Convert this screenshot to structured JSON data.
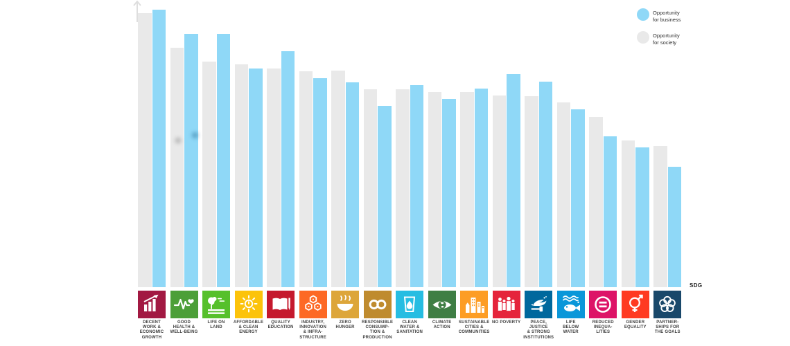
{
  "colors": {
    "business": "#8FD8F7",
    "society": "#E9E9E9",
    "axis_arrow": "#DEDEDE",
    "label_text": "#3E3E3E"
  },
  "legend": {
    "business": {
      "line1": "Opportunity",
      "line2": "for business"
    },
    "society": {
      "line1": "Opportunity",
      "line2": "for society"
    }
  },
  "axis": {
    "x_end_label": "SDG"
  },
  "chart_data": {
    "type": "bar",
    "title": "",
    "xlabel": "SDG",
    "ylabel": "",
    "ylim": [
      0,
      100
    ],
    "grid": false,
    "legend_position": "top-right",
    "categories": [
      "Decent Work & Economic Growth",
      "Good Health & Well-Being",
      "Life on Land",
      "Affordable & Clean Energy",
      "Quality Education",
      "Industry, Innovation & Infrastructure",
      "Zero Hunger",
      "Responsible Consumption & Production",
      "Clean Water & Sanitation",
      "Climate Action",
      "Sustainable Cities & Communities",
      "No Poverty",
      "Peace, Justice & Strong Institutions",
      "Life Below Water",
      "Reduced Inequalities",
      "Gender Equality",
      "Partnerships for the Goals"
    ],
    "series": [
      {
        "name": "Opportunity for society",
        "color": "#E9E9E9",
        "values": [
          98.8,
          86.3,
          81.4,
          80.2,
          78.8,
          77.8,
          78.1,
          71.3,
          71.4,
          70.4,
          70.3,
          69.0,
          68.8,
          66.5,
          61.3,
          52.9,
          50.9
        ]
      },
      {
        "name": "Opportunity for business",
        "color": "#8FD8F7",
        "values": [
          100,
          91.4,
          91.4,
          78.7,
          85.0,
          75.3,
          73.8,
          65.3,
          72.7,
          67.8,
          71.5,
          76.7,
          74.0,
          64.0,
          54.4,
          50.4,
          43.5
        ]
      }
    ]
  },
  "sdgs": [
    {
      "name": "Decent Work & Economic Growth",
      "label_lines": [
        "DECENT",
        "WORK &",
        "ECONOMIC",
        "GROWTH"
      ],
      "color": "#A21942",
      "icon": "growth-chart-icon",
      "society": 98.8,
      "business": 100
    },
    {
      "name": "Good Health & Well-Being",
      "label_lines": [
        "GOOD",
        "HEALTH &",
        "WELL-BEING"
      ],
      "color": "#4C9F38",
      "icon": "heartbeat-icon",
      "society": 86.3,
      "business": 91.4
    },
    {
      "name": "Life on Land",
      "label_lines": [
        "LIFE ON",
        "LAND"
      ],
      "color": "#56C02B",
      "icon": "tree-icon",
      "society": 81.4,
      "business": 91.4
    },
    {
      "name": "Affordable & Clean Energy",
      "label_lines": [
        "AFFORDABLE",
        "& CLEAN",
        "ENERGY"
      ],
      "color": "#FCC30B",
      "icon": "sun-icon",
      "society": 80.2,
      "business": 78.7
    },
    {
      "name": "Quality Education",
      "label_lines": [
        "QUALITY",
        "EDUCATION"
      ],
      "color": "#C5192D",
      "icon": "book-icon",
      "society": 78.8,
      "business": 85.0
    },
    {
      "name": "Industry, Innovation & Infrastructure",
      "label_lines": [
        "INDUSTRY,",
        "INNOVATION",
        "& INFRA-",
        "STRUCTURE"
      ],
      "color": "#FD6925",
      "icon": "cubes-icon",
      "society": 77.8,
      "business": 75.3
    },
    {
      "name": "Zero Hunger",
      "label_lines": [
        "ZERO",
        "HUNGER"
      ],
      "color": "#DDA63A",
      "icon": "bowl-icon",
      "society": 78.1,
      "business": 73.8
    },
    {
      "name": "Responsible Consumption & Production",
      "label_lines": [
        "RESPONSIBLE",
        "CONSUMP-",
        "TION &",
        "PRODUCTION"
      ],
      "color": "#BF8B2E",
      "icon": "infinity-icon",
      "society": 71.3,
      "business": 65.3
    },
    {
      "name": "Clean Water & Sanitation",
      "label_lines": [
        "CLEAN",
        "WATER &",
        "SANITATION"
      ],
      "color": "#26BDE2",
      "icon": "water-drop-icon",
      "society": 71.4,
      "business": 72.7
    },
    {
      "name": "Climate Action",
      "label_lines": [
        "CLIMATE",
        "ACTION"
      ],
      "color": "#3F7E44",
      "icon": "eye-globe-icon",
      "society": 70.4,
      "business": 67.8
    },
    {
      "name": "Sustainable Cities & Communities",
      "label_lines": [
        "SUSTAINABLE",
        "CITIES &",
        "COMMUNITIES"
      ],
      "color": "#FD9D24",
      "icon": "city-icon",
      "society": 70.3,
      "business": 71.5
    },
    {
      "name": "No Poverty",
      "label_lines": [
        "NO POVERTY"
      ],
      "color": "#E5243B",
      "icon": "people-icon",
      "society": 69.0,
      "business": 76.7
    },
    {
      "name": "Peace, Justice & Strong Institutions",
      "label_lines": [
        "PEACE,",
        "JUSTICE",
        "& STRONG",
        "INSTITUTIONS"
      ],
      "color": "#00689D",
      "icon": "dove-icon",
      "society": 68.8,
      "business": 74.0
    },
    {
      "name": "Life Below Water",
      "label_lines": [
        "LIFE",
        "BELOW",
        "WATER"
      ],
      "color": "#0A97D9",
      "icon": "fish-icon",
      "society": 66.5,
      "business": 64.0
    },
    {
      "name": "Reduced Inequalities",
      "label_lines": [
        "REDUCED",
        "INEQUA-",
        "LITIES"
      ],
      "color": "#DD1367",
      "icon": "equals-icon",
      "society": 61.3,
      "business": 54.4
    },
    {
      "name": "Gender Equality",
      "label_lines": [
        "GENDER",
        "EQUALITY"
      ],
      "color": "#FF3A21",
      "icon": "gender-icon",
      "society": 52.9,
      "business": 50.4
    },
    {
      "name": "Partnerships for the Goals",
      "label_lines": [
        "PARTNER-",
        "SHIPS FOR",
        "THE GOALS"
      ],
      "color": "#19486A",
      "icon": "rings-icon",
      "society": 50.9,
      "business": 43.5
    }
  ]
}
